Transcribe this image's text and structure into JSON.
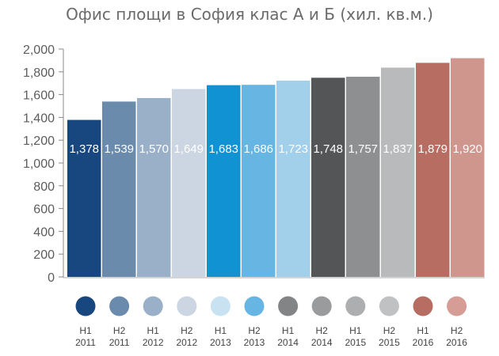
{
  "chart_data": {
    "type": "bar",
    "title": "Офис площи в София клас А и Б  (хил. кв.м.)",
    "ylim": [
      0,
      2000
    ],
    "yticks": [
      "0",
      "200",
      "400",
      "600",
      "800",
      "1,000",
      "1,200",
      "1,400",
      "1,600",
      "1,800",
      "2,000"
    ],
    "categories": [
      {
        "half": "H1",
        "year": "2011"
      },
      {
        "half": "H2",
        "year": "2011"
      },
      {
        "half": "H1",
        "year": "2012"
      },
      {
        "half": "H2",
        "year": "2012"
      },
      {
        "half": "H1",
        "year": "2013"
      },
      {
        "half": "H2",
        "year": "2013"
      },
      {
        "half": "H1",
        "year": "2014"
      },
      {
        "half": "H2",
        "year": "2014"
      },
      {
        "half": "H1",
        "year": "2015"
      },
      {
        "half": "H2",
        "year": "2015"
      },
      {
        "half": "H1",
        "year": "2016"
      },
      {
        "half": "H2",
        "year": "2016"
      }
    ],
    "values": [
      1378,
      1539,
      1570,
      1649,
      1683,
      1686,
      1723,
      1748,
      1757,
      1837,
      1879,
      1920
    ],
    "value_labels": [
      "1,378",
      "1,539",
      "1,570",
      "1,649",
      "1,683",
      "1,686",
      "1,723",
      "1,748",
      "1,757",
      "1,837",
      "1,879",
      "1,920"
    ],
    "colors": [
      "#17477e",
      "#6a8bac",
      "#9ab0c8",
      "#cbd6e2",
      "#1192d2",
      "#66b5e3",
      "#a2cfea",
      "#545557",
      "#8e8f91",
      "#b9babc",
      "#b76d61",
      "#cf968d"
    ],
    "legend_colors": [
      "#17477e",
      "#6a8bac",
      "#9ab0c8",
      "#cbd6e2",
      "#c8e2f2",
      "#66b5e3",
      "#838486",
      "#9a9b9d",
      "#adaeb0",
      "#c0c1c3",
      "#b76d61",
      "#d59d95"
    ],
    "grid": false,
    "legend": "bottom"
  }
}
